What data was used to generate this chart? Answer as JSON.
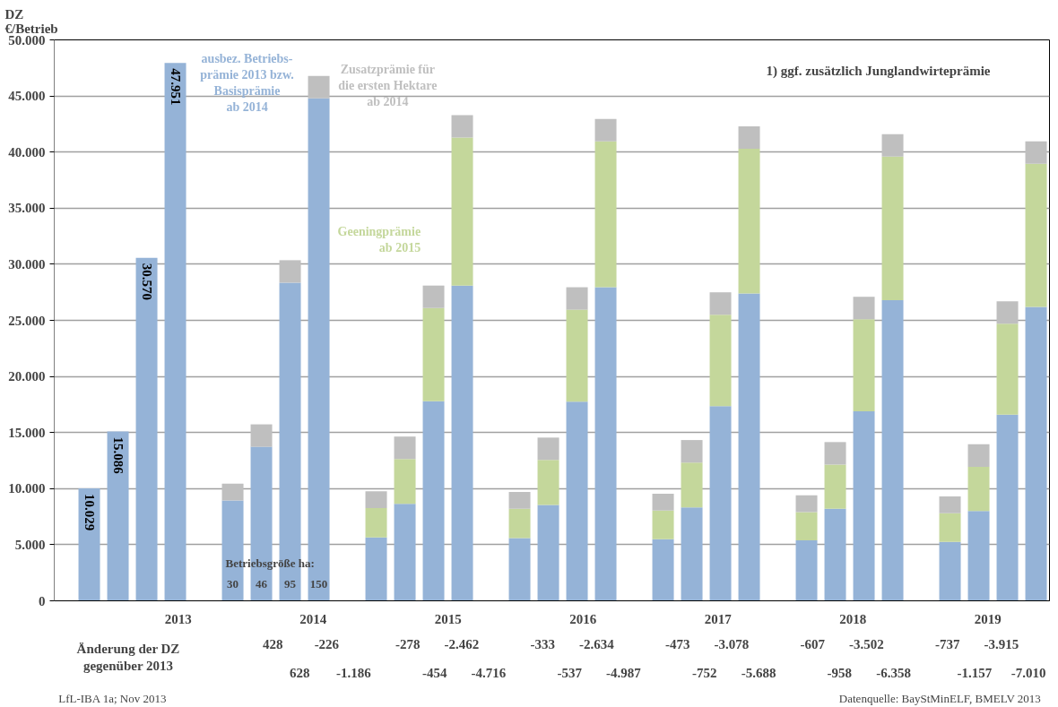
{
  "chart_data": {
    "type": "bar",
    "stacked": true,
    "ylabel": "DZ\n€/Betrieb",
    "categories": [
      null,
      null,
      null,
      null,
      null,
      null,
      null,
      null,
      null,
      null,
      null,
      null,
      null,
      null,
      null,
      null,
      null,
      null,
      null,
      null,
      null,
      null,
      null,
      null,
      null,
      null,
      null,
      null
    ],
    "series": [
      {
        "name": "ausbez. Betriebs-\nprämie 2013 bzw.\nBasisprämie\nab 2014",
        "color": "#95b3d7",
        "values": [
          10029,
          15086,
          30570,
          47951,
          8950,
          13730,
          28360,
          44780,
          5660,
          8640,
          17800,
          28100,
          5600,
          8550,
          17750,
          27950,
          5500,
          8330,
          17350,
          27400,
          5400,
          8200,
          16900,
          26800,
          5250,
          8000,
          16600,
          26200
        ],
        "value_labels": [
          "10.029",
          "15.086",
          "30.570",
          "47.951",
          null,
          null,
          null,
          null,
          null,
          null,
          null,
          null,
          null,
          null,
          null,
          null,
          null,
          null,
          null,
          null,
          null,
          null,
          null,
          null,
          null,
          null,
          null,
          null
        ]
      },
      {
        "name": "Geeningprämie\nab 2015",
        "color": "#c4d79b",
        "values": [
          null,
          null,
          null,
          null,
          null,
          null,
          null,
          null,
          2600,
          4000,
          8300,
          13200,
          2600,
          4000,
          8200,
          13000,
          2550,
          4000,
          8150,
          12900,
          2500,
          3950,
          8200,
          12800,
          2550,
          3950,
          8100,
          12750
        ]
      },
      {
        "name": "Zusatzprämie für\ndie ersten Hektare\nab 2014",
        "color": "#bfbfbf",
        "values": [
          null,
          null,
          null,
          null,
          1500,
          2000,
          2000,
          2000,
          1500,
          2000,
          2000,
          2000,
          1500,
          2000,
          2000,
          2000,
          1500,
          2000,
          2000,
          2000,
          1500,
          2000,
          2000,
          2000,
          1500,
          2000,
          2000,
          2000
        ]
      }
    ],
    "ylim": [
      0,
      50000
    ],
    "yticks": [
      0,
      {
        "value": 5000,
        "label": "5.000"
      },
      {
        "value": 10000,
        "label": "10.000"
      },
      {
        "value": 15000,
        "label": "15.000"
      },
      {
        "value": 20000,
        "label": "20.000"
      },
      {
        "value": 25000,
        "label": "25.000"
      },
      {
        "value": 30000,
        "label": "30.000"
      },
      {
        "value": 35000,
        "label": "35.000"
      },
      {
        "value": 40000,
        "label": "40.000"
      },
      {
        "value": 45000,
        "label": "45.000"
      },
      {
        "value": 50000,
        "label": "50.000"
      }
    ],
    "grid": "y",
    "legend": false,
    "tick_labels": "y",
    "annotations": [
      "1) ggf. zusätzlich Junglandwirteprämie",
      "Betriebsgröße ha:",
      "30",
      "46",
      "95",
      "150",
      "2013",
      "2014",
      "2015",
      "2016",
      "2017",
      "2018",
      "2019",
      "Änderung der DZ\ngegenüber 2013",
      "428",
      "628",
      "-226",
      "-1.186",
      "-278",
      "-454",
      "-2.462",
      "-4.716",
      "-333",
      "-537",
      "-2.634",
      "-4.987",
      "-473",
      "-752",
      "-3.078",
      "-5.688",
      "-607",
      "-958",
      "-3.502",
      "-6.358",
      "-737",
      "-1.157",
      "-3.915",
      "-7.010",
      "LfL-IBA 1a; Nov 2013",
      "Datenquelle: BayStMinELF, BMELV 2013"
    ]
  }
}
